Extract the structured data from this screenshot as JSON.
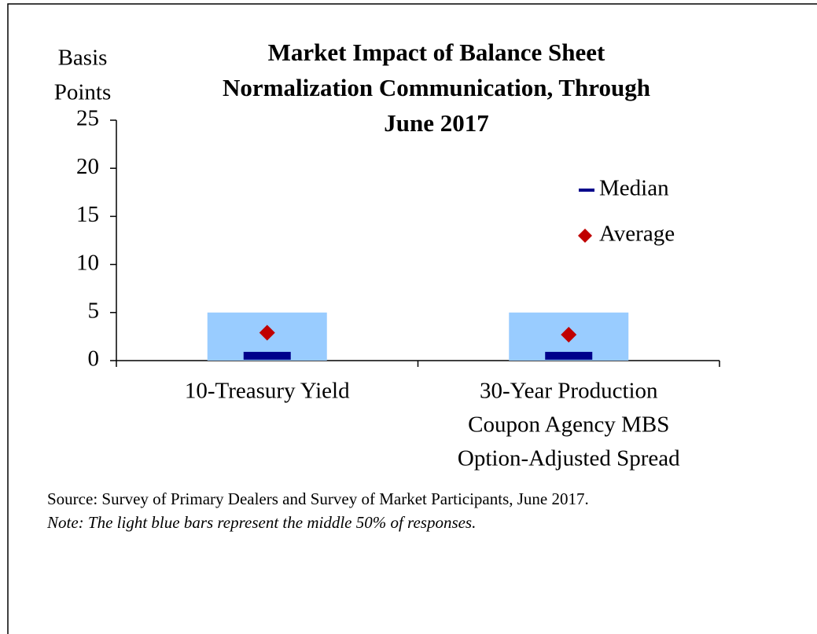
{
  "chart_data": {
    "type": "range",
    "title": [
      "Market Impact  of Balance Sheet",
      "Normalization  Communication, Through",
      "June 2017"
    ],
    "y_label": [
      "Basis",
      "Points"
    ],
    "categories": [
      [
        "10-Treasury Yield"
      ],
      [
        "30-Year Production",
        "Coupon Agency MBS",
        "Option-Adjusted Spread"
      ]
    ],
    "interquartile": {
      "color": "#99ccff",
      "low": [
        0,
        0
      ],
      "high": [
        5,
        5
      ]
    },
    "series": [
      {
        "name": "Median",
        "color": "#00008b",
        "values": [
          0.5,
          0.5
        ]
      },
      {
        "name": "Average",
        "color": "#c00000",
        "values": [
          2.9,
          2.7
        ]
      }
    ],
    "ylim": [
      0,
      25
    ],
    "yticks": [
      0,
      5,
      10,
      15,
      20,
      25
    ],
    "grid": false,
    "legend": "upper right",
    "source": "Source: Survey of Primary Dealers and Survey of Market Participants, June 2017.",
    "note": "Note: The light blue bars represent the middle 50% of responses."
  }
}
